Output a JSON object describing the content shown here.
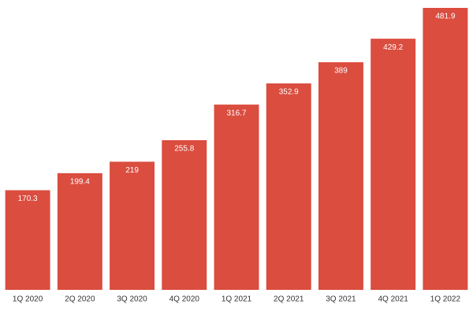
{
  "chart_data": {
    "type": "bar",
    "categories": [
      "1Q 2020",
      "2Q 2020",
      "3Q 2020",
      "4Q 2020",
      "1Q 2021",
      "2Q 2021",
      "3Q 2021",
      "4Q 2021",
      "1Q 2022"
    ],
    "values": [
      170.3,
      199.4,
      219,
      255.8,
      316.7,
      352.9,
      389,
      429.2,
      481.9
    ],
    "color": "#da4d3f"
  }
}
